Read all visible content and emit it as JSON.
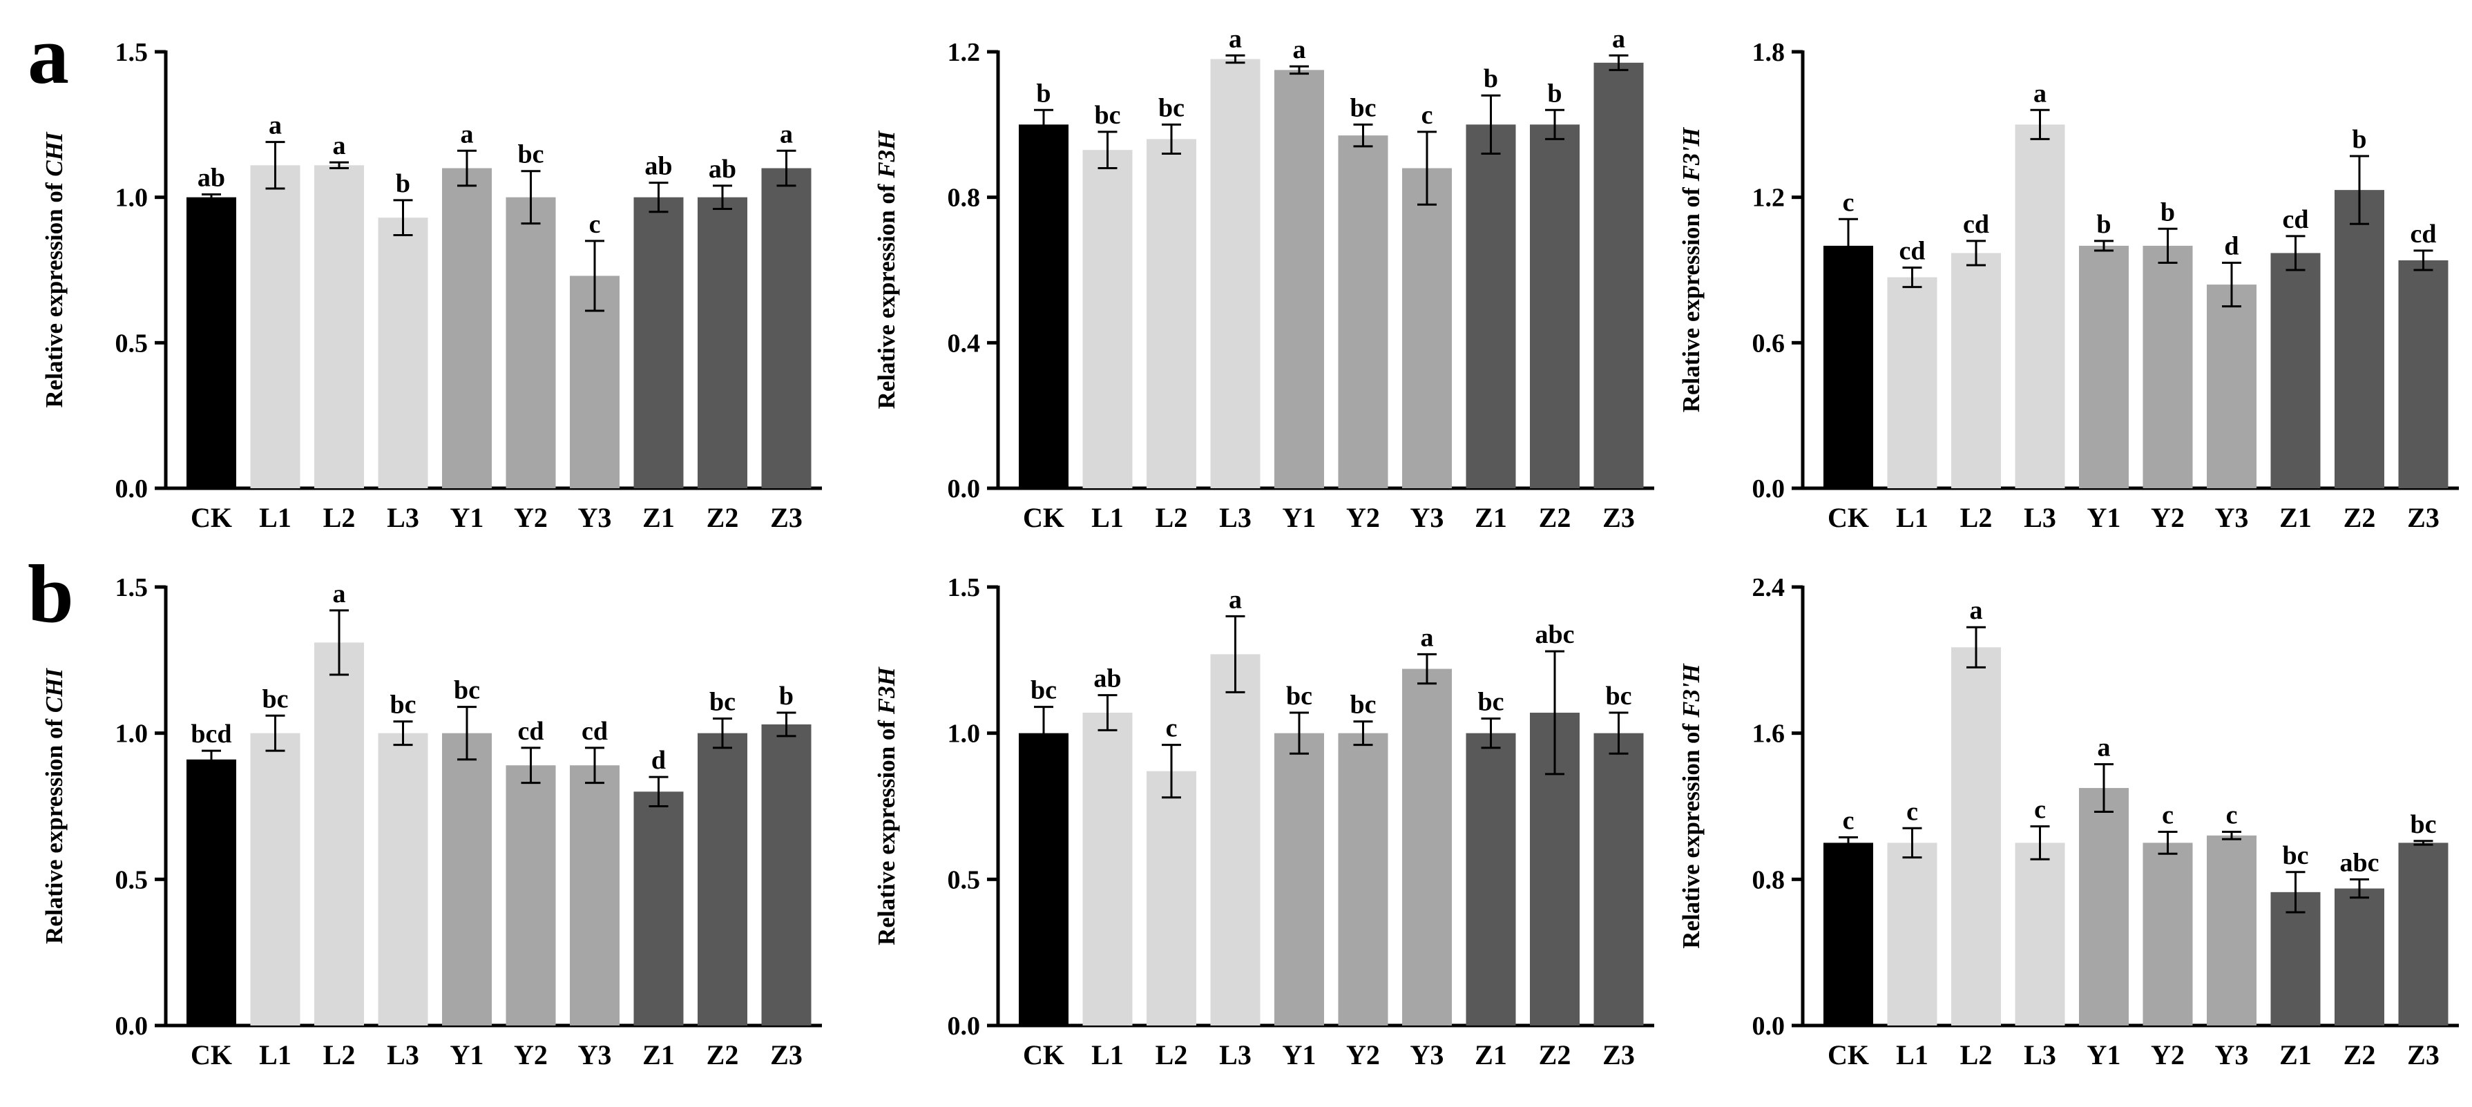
{
  "panel_labels": [
    "a",
    "b"
  ],
  "colors": {
    "CK": "#000000",
    "L": "#d9d9d9",
    "Y": "#a6a6a6",
    "Z": "#595959",
    "axis": "#000000",
    "error": "#000000",
    "background": "#ffffff"
  },
  "chart_data": [
    {
      "type": "bar",
      "panel": "a",
      "gene": "CHI",
      "ylabel_prefix": "Relative expression of",
      "ylabel_gene": "CHI",
      "ylim": [
        0,
        1.5
      ],
      "yticks": [
        "0.0",
        "0.5",
        "1.0",
        "1.5"
      ],
      "categories": [
        "CK",
        "L1",
        "L2",
        "L3",
        "Y1",
        "Y2",
        "Y3",
        "Z1",
        "Z2",
        "Z3"
      ],
      "values": [
        1.0,
        1.11,
        1.11,
        0.93,
        1.1,
        1.0,
        0.73,
        1.0,
        1.0,
        1.1
      ],
      "errors": [
        0.01,
        0.08,
        0.01,
        0.06,
        0.06,
        0.09,
        0.12,
        0.05,
        0.04,
        0.06
      ],
      "letters": [
        "ab",
        "a",
        "a",
        "b",
        "a",
        "bc",
        "c",
        "ab",
        "ab",
        "a"
      ]
    },
    {
      "type": "bar",
      "panel": "a",
      "gene": "F3H",
      "ylabel_prefix": "Relative expression of",
      "ylabel_gene": "F3H",
      "ylim": [
        0,
        1.2
      ],
      "yticks": [
        "0.0",
        "0.4",
        "0.8",
        "1.2"
      ],
      "categories": [
        "CK",
        "L1",
        "L2",
        "L3",
        "Y1",
        "Y2",
        "Y3",
        "Z1",
        "Z2",
        "Z3"
      ],
      "values": [
        1.0,
        0.93,
        0.96,
        1.18,
        1.15,
        0.97,
        0.88,
        1.0,
        1.0,
        1.17
      ],
      "errors": [
        0.04,
        0.05,
        0.04,
        0.01,
        0.01,
        0.03,
        0.1,
        0.08,
        0.04,
        0.02
      ],
      "letters": [
        "b",
        "bc",
        "bc",
        "a",
        "a",
        "bc",
        "c",
        "b",
        "b",
        "a"
      ]
    },
    {
      "type": "bar",
      "panel": "a",
      "gene": "F3'H",
      "ylabel_prefix": "Relative expression of",
      "ylabel_gene": "F3'H",
      "ylim": [
        0,
        1.8
      ],
      "yticks": [
        "0.0",
        "0.6",
        "1.2",
        "1.8"
      ],
      "categories": [
        "CK",
        "L1",
        "L2",
        "L3",
        "Y1",
        "Y2",
        "Y3",
        "Z1",
        "Z2",
        "Z3"
      ],
      "values": [
        1.0,
        0.87,
        0.97,
        1.5,
        1.0,
        1.0,
        0.84,
        0.97,
        1.23,
        0.94
      ],
      "errors": [
        0.11,
        0.04,
        0.05,
        0.06,
        0.02,
        0.07,
        0.09,
        0.07,
        0.14,
        0.04
      ],
      "letters": [
        "c",
        "cd",
        "cd",
        "a",
        "b",
        "b",
        "d",
        "cd",
        "b",
        "cd"
      ]
    },
    {
      "type": "bar",
      "panel": "b",
      "gene": "CHI",
      "ylabel_prefix": "Relative expression of",
      "ylabel_gene": "CHI",
      "ylim": [
        0,
        1.5
      ],
      "yticks": [
        "0.0",
        "0.5",
        "1.0",
        "1.5"
      ],
      "categories": [
        "CK",
        "L1",
        "L2",
        "L3",
        "Y1",
        "Y2",
        "Y3",
        "Z1",
        "Z2",
        "Z3"
      ],
      "values": [
        0.91,
        1.0,
        1.31,
        1.0,
        1.0,
        0.89,
        0.89,
        0.8,
        1.0,
        1.03
      ],
      "errors": [
        0.03,
        0.06,
        0.11,
        0.04,
        0.09,
        0.06,
        0.06,
        0.05,
        0.05,
        0.04
      ],
      "letters": [
        "bcd",
        "bc",
        "a",
        "bc",
        "bc",
        "cd",
        "cd",
        "d",
        "bc",
        "b"
      ]
    },
    {
      "type": "bar",
      "panel": "b",
      "gene": "F3H",
      "ylabel_prefix": "Relative expression of",
      "ylabel_gene": "F3H",
      "ylim": [
        0,
        1.5
      ],
      "yticks": [
        "0.0",
        "0.5",
        "1.0",
        "1.5"
      ],
      "categories": [
        "CK",
        "L1",
        "L2",
        "L3",
        "Y1",
        "Y2",
        "Y3",
        "Z1",
        "Z2",
        "Z3"
      ],
      "values": [
        1.0,
        1.07,
        0.87,
        1.27,
        1.0,
        1.0,
        1.22,
        1.0,
        1.07,
        1.0
      ],
      "errors": [
        0.09,
        0.06,
        0.09,
        0.13,
        0.07,
        0.04,
        0.05,
        0.05,
        0.21,
        0.07
      ],
      "letters": [
        "bc",
        "ab",
        "c",
        "a",
        "bc",
        "bc",
        "a",
        "bc",
        "abc",
        "bc"
      ]
    },
    {
      "type": "bar",
      "panel": "b",
      "gene": "F3'H",
      "ylabel_prefix": "Relative expression of",
      "ylabel_gene": "F3'H",
      "ylim": [
        0,
        2.4
      ],
      "yticks": [
        "0.0",
        "0.8",
        "1.6",
        "2.4"
      ],
      "categories": [
        "CK",
        "L1",
        "L2",
        "L3",
        "Y1",
        "Y2",
        "Y3",
        "Z1",
        "Z2",
        "Z3"
      ],
      "values": [
        1.0,
        1.0,
        2.07,
        1.0,
        1.3,
        1.0,
        1.04,
        0.73,
        0.75,
        1.0
      ],
      "errors": [
        0.03,
        0.08,
        0.11,
        0.09,
        0.13,
        0.06,
        0.02,
        0.11,
        0.05,
        0.01
      ],
      "letters": [
        "c",
        "c",
        "a",
        "c",
        "a",
        "c",
        "c",
        "bc",
        "abc",
        "bc"
      ]
    }
  ]
}
